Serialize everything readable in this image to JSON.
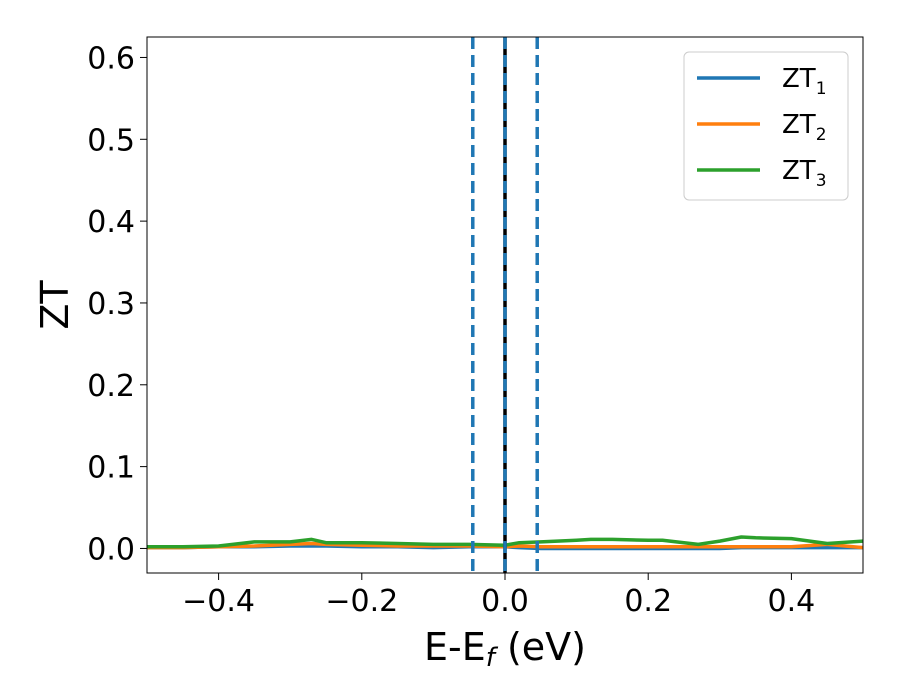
{
  "chart_data": {
    "type": "line",
    "xlabel_main": "E-E",
    "xlabel_sub": "f",
    "xlabel_unit": " (eV)",
    "ylabel": "ZT",
    "xlim": [
      -0.5,
      0.5
    ],
    "ylim": [
      -0.03,
      0.625
    ],
    "xticks": [
      -0.4,
      -0.2,
      0.0,
      0.2,
      0.4
    ],
    "xtick_labels": [
      "−0.4",
      "−0.2",
      "0.0",
      "0.2",
      "0.4"
    ],
    "yticks": [
      0.0,
      0.1,
      0.2,
      0.3,
      0.4,
      0.5,
      0.6
    ],
    "ytick_labels": [
      "0.0",
      "0.1",
      "0.2",
      "0.3",
      "0.4",
      "0.5",
      "0.6"
    ],
    "grid": false,
    "legend_position": "top-right",
    "x": [
      -0.5,
      -0.45,
      -0.4,
      -0.35,
      -0.3,
      -0.27,
      -0.25,
      -0.2,
      -0.15,
      -0.1,
      -0.05,
      0.0,
      0.02,
      0.05,
      0.1,
      0.12,
      0.15,
      0.2,
      0.22,
      0.25,
      0.27,
      0.3,
      0.33,
      0.35,
      0.4,
      0.45,
      0.5
    ],
    "series": [
      {
        "name": "ZT",
        "subscript": "1",
        "color": "#1f77b4",
        "values": [
          0.001,
          0.001,
          0.002,
          0.002,
          0.003,
          0.003,
          0.003,
          0.002,
          0.002,
          0.001,
          0.002,
          0.002,
          0.001,
          0.0,
          0.0,
          0.0,
          0.0,
          0.0,
          0.0,
          0.0,
          0.0,
          0.0,
          0.001,
          0.001,
          0.001,
          0.001,
          0.001
        ]
      },
      {
        "name": "ZT",
        "subscript": "2",
        "color": "#ff7f0e",
        "values": [
          0.001,
          0.001,
          0.002,
          0.003,
          0.005,
          0.006,
          0.005,
          0.004,
          0.003,
          0.003,
          0.003,
          0.002,
          0.003,
          0.002,
          0.002,
          0.002,
          0.002,
          0.002,
          0.002,
          0.002,
          0.002,
          0.002,
          0.002,
          0.002,
          0.002,
          0.005,
          0.001
        ]
      },
      {
        "name": "ZT",
        "subscript": "3",
        "color": "#2ca02c",
        "values": [
          0.002,
          0.002,
          0.003,
          0.008,
          0.008,
          0.011,
          0.007,
          0.007,
          0.006,
          0.005,
          0.005,
          0.004,
          0.007,
          0.008,
          0.01,
          0.011,
          0.011,
          0.01,
          0.01,
          0.007,
          0.005,
          0.009,
          0.014,
          0.013,
          0.012,
          0.006,
          0.009
        ]
      }
    ],
    "vlines": [
      {
        "x": -0.045,
        "style": "dashed",
        "color": "#1f77b4"
      },
      {
        "x": 0.0,
        "style": "solid",
        "color": "#000000"
      },
      {
        "x": 0.0,
        "style": "dashed",
        "color": "#1f77b4"
      },
      {
        "x": 0.045,
        "style": "dashed",
        "color": "#1f77b4"
      }
    ]
  }
}
